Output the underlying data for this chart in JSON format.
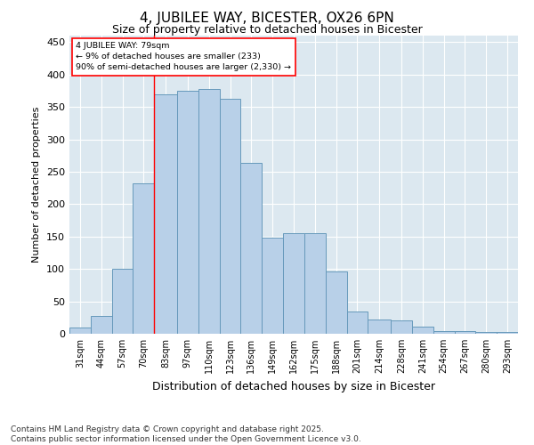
{
  "title": "4, JUBILEE WAY, BICESTER, OX26 6PN",
  "subtitle": "Size of property relative to detached houses in Bicester",
  "xlabel": "Distribution of detached houses by size in Bicester",
  "ylabel": "Number of detached properties",
  "bin_edges": [
    31,
    44,
    57,
    70,
    83,
    97,
    110,
    123,
    136,
    149,
    162,
    175,
    188,
    201,
    214,
    228,
    241,
    254,
    267,
    280,
    293,
    306
  ],
  "bar_heights": [
    10,
    27,
    100,
    232,
    370,
    375,
    378,
    362,
    263,
    148,
    155,
    155,
    96,
    35,
    22,
    21,
    11,
    4,
    4,
    3,
    3
  ],
  "bar_color": "#b8d0e8",
  "bar_edge_color": "#6699bb",
  "bar_edge_width": 0.7,
  "property_line_x": 83,
  "property_line_color": "red",
  "annotation_text": "4 JUBILEE WAY: 79sqm\n← 9% of detached houses are smaller (233)\n90% of semi-detached houses are larger (2,330) →",
  "annotation_box_color": "white",
  "annotation_box_edge_color": "red",
  "ylim": [
    0,
    460
  ],
  "yticks": [
    0,
    50,
    100,
    150,
    200,
    250,
    300,
    350,
    400,
    450
  ],
  "tick_labels": [
    "31sqm",
    "44sqm",
    "57sqm",
    "70sqm",
    "83sqm",
    "97sqm",
    "110sqm",
    "123sqm",
    "136sqm",
    "149sqm",
    "162sqm",
    "175sqm",
    "188sqm",
    "201sqm",
    "214sqm",
    "228sqm",
    "241sqm",
    "254sqm",
    "267sqm",
    "280sqm",
    "293sqm"
  ],
  "background_color": "#dce8f0",
  "grid_color": "white",
  "footer_text": "Contains HM Land Registry data © Crown copyright and database right 2025.\nContains public sector information licensed under the Open Government Licence v3.0.",
  "title_fontsize": 11,
  "subtitle_fontsize": 9,
  "xlabel_fontsize": 9,
  "ylabel_fontsize": 8,
  "tick_fontsize": 7,
  "footer_fontsize": 6.5,
  "ytick_fontsize": 8
}
